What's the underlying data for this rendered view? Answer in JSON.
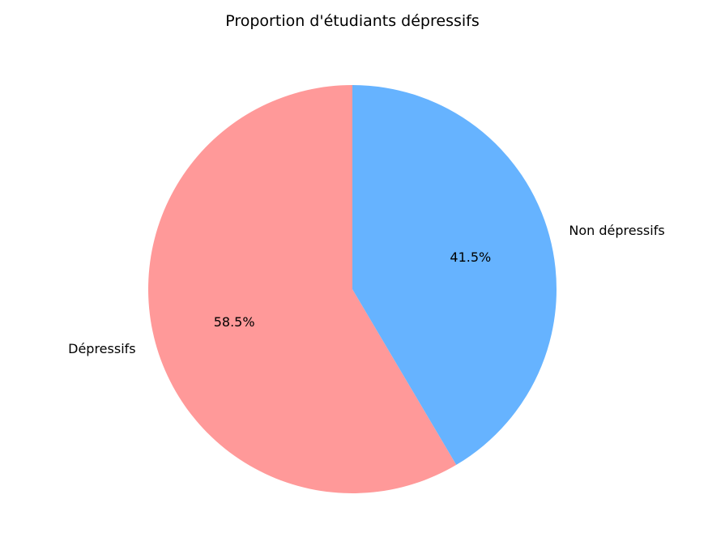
{
  "chart_data": {
    "type": "pie",
    "title": "Proportion d'étudiants dépressifs",
    "slices": [
      {
        "label": "Dépressifs",
        "value": 58.5,
        "percent_label": "58.5%",
        "color": "#ff9999"
      },
      {
        "label": "Non dépressifs",
        "value": 41.5,
        "percent_label": "41.5%",
        "color": "#66b3ff"
      }
    ],
    "start_angle_deg": 90,
    "direction": "counterclockwise",
    "legend": "none"
  }
}
